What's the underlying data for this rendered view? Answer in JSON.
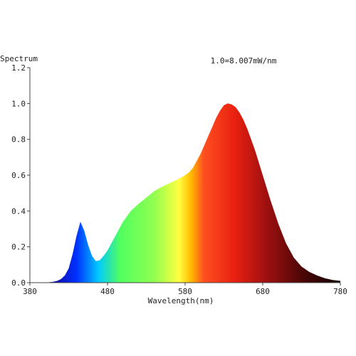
{
  "chart_data": {
    "type": "area",
    "ylabel": "Spectrum",
    "xlabel": "Wavelength(nm)",
    "annotation": "1.0=8.007mW/nm",
    "xlim": [
      380,
      780
    ],
    "ylim": [
      0,
      1.2
    ],
    "x_ticks": [
      "380",
      "480",
      "580",
      "680",
      "780"
    ],
    "y_ticks": [
      "0.0",
      "0.2",
      "0.4",
      "0.6",
      "0.8",
      "1.0",
      "1.2"
    ],
    "grid": false,
    "series": [
      {
        "x": [
          380,
          400,
          410,
          415,
          420,
          425,
          430,
          435,
          440,
          445,
          450,
          455,
          460,
          465,
          470,
          475,
          480,
          485,
          490,
          495,
          500,
          505,
          510,
          515,
          520,
          530,
          540,
          550,
          560,
          570,
          580,
          585,
          590,
          595,
          600,
          605,
          610,
          615,
          620,
          625,
          630,
          635,
          640,
          645,
          650,
          655,
          660,
          665,
          670,
          680,
          690,
          700,
          710,
          720,
          730,
          740,
          750,
          760,
          770,
          780
        ],
        "y": [
          0.0,
          0.0,
          0.005,
          0.01,
          0.02,
          0.04,
          0.08,
          0.16,
          0.26,
          0.34,
          0.29,
          0.21,
          0.15,
          0.12,
          0.125,
          0.15,
          0.18,
          0.22,
          0.26,
          0.3,
          0.34,
          0.37,
          0.4,
          0.42,
          0.44,
          0.475,
          0.51,
          0.535,
          0.555,
          0.575,
          0.6,
          0.615,
          0.64,
          0.68,
          0.72,
          0.77,
          0.82,
          0.87,
          0.92,
          0.96,
          0.99,
          1.0,
          0.995,
          0.98,
          0.95,
          0.91,
          0.86,
          0.8,
          0.74,
          0.6,
          0.46,
          0.33,
          0.22,
          0.14,
          0.09,
          0.06,
          0.04,
          0.025,
          0.015,
          0.01
        ]
      }
    ]
  }
}
